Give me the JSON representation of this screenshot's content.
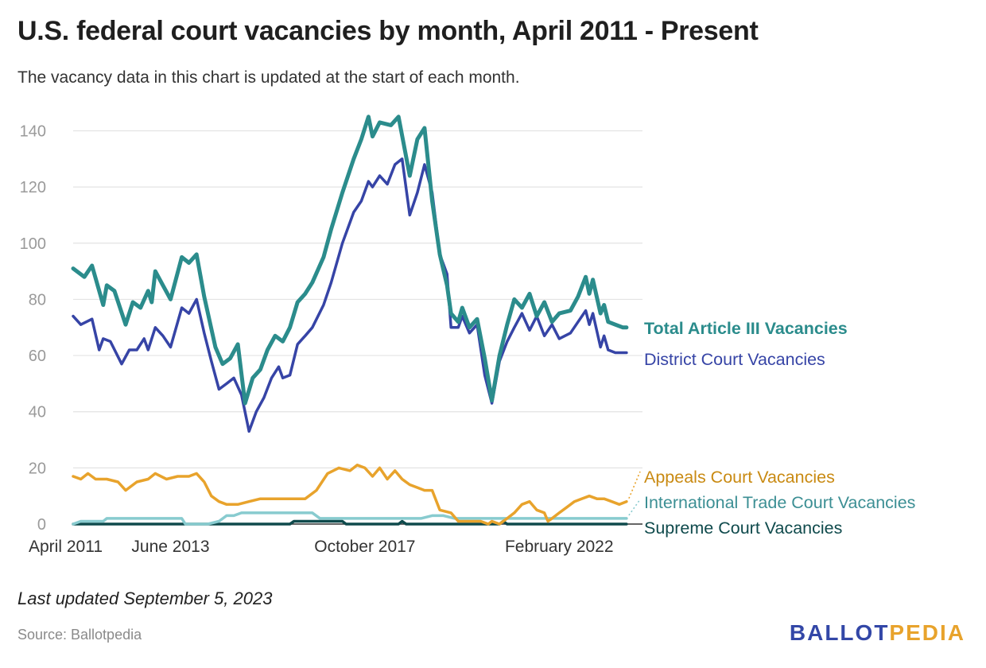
{
  "header": {
    "title": "U.S. federal court vacancies by month, April 2011 - Present",
    "subtitle": "The vacancy data in this chart is updated at the start of each month."
  },
  "footer": {
    "updated": "Last updated September 5, 2023",
    "source": "Source: Ballotpedia",
    "logo_ballot": "BALLOT",
    "logo_pedia": "PEDIA"
  },
  "chart_data": {
    "type": "line",
    "title": "U.S. federal court vacancies by month, April 2011 - Present",
    "ylim": [
      0,
      145
    ],
    "yticks": [
      0,
      20,
      40,
      60,
      80,
      100,
      120,
      140
    ],
    "xlim": [
      2011.25,
      2023.67
    ],
    "xticks": [
      {
        "x": 2011.25,
        "label": "April 2011"
      },
      {
        "x": 2013.42,
        "label": "June 2013"
      },
      {
        "x": 2017.75,
        "label": "October 2017"
      },
      {
        "x": 2022.08,
        "label": "February 2022"
      }
    ],
    "grid": true,
    "legend": "right-inline",
    "series": [
      {
        "name": "Total Article III Vacancies",
        "color": "#2b8c8c",
        "width": 5,
        "points": [
          [
            2011.25,
            91
          ],
          [
            2011.5,
            88
          ],
          [
            2011.67,
            92
          ],
          [
            2011.92,
            78
          ],
          [
            2012.0,
            85
          ],
          [
            2012.17,
            83
          ],
          [
            2012.42,
            71
          ],
          [
            2012.58,
            79
          ],
          [
            2012.75,
            77
          ],
          [
            2012.92,
            83
          ],
          [
            2013.0,
            79
          ],
          [
            2013.08,
            90
          ],
          [
            2013.25,
            85
          ],
          [
            2013.42,
            80
          ],
          [
            2013.67,
            95
          ],
          [
            2013.83,
            93
          ],
          [
            2014.0,
            96
          ],
          [
            2014.17,
            81
          ],
          [
            2014.42,
            63
          ],
          [
            2014.58,
            57
          ],
          [
            2014.75,
            59
          ],
          [
            2014.92,
            64
          ],
          [
            2015.08,
            43
          ],
          [
            2015.25,
            52
          ],
          [
            2015.42,
            55
          ],
          [
            2015.58,
            62
          ],
          [
            2015.75,
            67
          ],
          [
            2015.92,
            65
          ],
          [
            2016.08,
            70
          ],
          [
            2016.25,
            79
          ],
          [
            2016.42,
            82
          ],
          [
            2016.58,
            86
          ],
          [
            2016.83,
            95
          ],
          [
            2017.0,
            105
          ],
          [
            2017.25,
            118
          ],
          [
            2017.5,
            130
          ],
          [
            2017.67,
            137
          ],
          [
            2017.83,
            145
          ],
          [
            2017.92,
            138
          ],
          [
            2018.08,
            143
          ],
          [
            2018.33,
            142
          ],
          [
            2018.5,
            145
          ],
          [
            2018.75,
            124
          ],
          [
            2018.92,
            137
          ],
          [
            2019.08,
            141
          ],
          [
            2019.25,
            115
          ],
          [
            2019.42,
            96
          ],
          [
            2019.58,
            85
          ],
          [
            2019.67,
            75
          ],
          [
            2019.83,
            72
          ],
          [
            2019.92,
            77
          ],
          [
            2020.08,
            70
          ],
          [
            2020.25,
            73
          ],
          [
            2020.42,
            59
          ],
          [
            2020.58,
            44
          ],
          [
            2020.75,
            60
          ],
          [
            2020.92,
            71
          ],
          [
            2021.08,
            80
          ],
          [
            2021.25,
            77
          ],
          [
            2021.42,
            82
          ],
          [
            2021.58,
            74
          ],
          [
            2021.75,
            79
          ],
          [
            2021.92,
            72
          ],
          [
            2022.08,
            75
          ],
          [
            2022.33,
            76
          ],
          [
            2022.5,
            81
          ],
          [
            2022.67,
            88
          ],
          [
            2022.75,
            82
          ],
          [
            2022.83,
            87
          ],
          [
            2023.0,
            75
          ],
          [
            2023.08,
            78
          ],
          [
            2023.17,
            72
          ],
          [
            2023.33,
            71
          ],
          [
            2023.5,
            70
          ],
          [
            2023.58,
            70
          ]
        ]
      },
      {
        "name": "District Court Vacancies",
        "color": "#3644a6",
        "width": 3.5,
        "points": [
          [
            2011.25,
            74
          ],
          [
            2011.42,
            71
          ],
          [
            2011.67,
            73
          ],
          [
            2011.83,
            62
          ],
          [
            2011.92,
            66
          ],
          [
            2012.08,
            65
          ],
          [
            2012.33,
            57
          ],
          [
            2012.5,
            62
          ],
          [
            2012.67,
            62
          ],
          [
            2012.83,
            66
          ],
          [
            2012.92,
            62
          ],
          [
            2013.08,
            70
          ],
          [
            2013.25,
            67
          ],
          [
            2013.42,
            63
          ],
          [
            2013.67,
            77
          ],
          [
            2013.83,
            75
          ],
          [
            2014.0,
            80
          ],
          [
            2014.17,
            68
          ],
          [
            2014.33,
            58
          ],
          [
            2014.5,
            48
          ],
          [
            2014.67,
            50
          ],
          [
            2014.83,
            52
          ],
          [
            2015.0,
            46
          ],
          [
            2015.17,
            33
          ],
          [
            2015.33,
            40
          ],
          [
            2015.5,
            45
          ],
          [
            2015.67,
            52
          ],
          [
            2015.83,
            56
          ],
          [
            2015.92,
            52
          ],
          [
            2016.08,
            53
          ],
          [
            2016.25,
            64
          ],
          [
            2016.42,
            67
          ],
          [
            2016.58,
            70
          ],
          [
            2016.83,
            78
          ],
          [
            2017.0,
            86
          ],
          [
            2017.25,
            100
          ],
          [
            2017.5,
            111
          ],
          [
            2017.67,
            115
          ],
          [
            2017.83,
            122
          ],
          [
            2017.92,
            120
          ],
          [
            2018.08,
            124
          ],
          [
            2018.25,
            121
          ],
          [
            2018.42,
            128
          ],
          [
            2018.58,
            130
          ],
          [
            2018.75,
            110
          ],
          [
            2018.92,
            118
          ],
          [
            2019.08,
            128
          ],
          [
            2019.25,
            118
          ],
          [
            2019.42,
            96
          ],
          [
            2019.58,
            89
          ],
          [
            2019.67,
            70
          ],
          [
            2019.83,
            70
          ],
          [
            2019.92,
            74
          ],
          [
            2020.08,
            68
          ],
          [
            2020.25,
            71
          ],
          [
            2020.42,
            53
          ],
          [
            2020.58,
            43
          ],
          [
            2020.75,
            58
          ],
          [
            2020.92,
            65
          ],
          [
            2021.08,
            70
          ],
          [
            2021.25,
            75
          ],
          [
            2021.42,
            69
          ],
          [
            2021.58,
            74
          ],
          [
            2021.75,
            67
          ],
          [
            2021.92,
            71
          ],
          [
            2022.08,
            66
          ],
          [
            2022.33,
            68
          ],
          [
            2022.5,
            72
          ],
          [
            2022.67,
            76
          ],
          [
            2022.75,
            71
          ],
          [
            2022.83,
            75
          ],
          [
            2023.0,
            63
          ],
          [
            2023.08,
            67
          ],
          [
            2023.17,
            62
          ],
          [
            2023.33,
            61
          ],
          [
            2023.5,
            61
          ],
          [
            2023.58,
            61
          ]
        ]
      },
      {
        "name": "Appeals Court Vacancies",
        "color": "#e8a32c",
        "width": 3.5,
        "points": [
          [
            2011.25,
            17
          ],
          [
            2011.42,
            16
          ],
          [
            2011.58,
            18
          ],
          [
            2011.75,
            16
          ],
          [
            2012.0,
            16
          ],
          [
            2012.25,
            15
          ],
          [
            2012.42,
            12
          ],
          [
            2012.67,
            15
          ],
          [
            2012.92,
            16
          ],
          [
            2013.08,
            18
          ],
          [
            2013.33,
            16
          ],
          [
            2013.58,
            17
          ],
          [
            2013.83,
            17
          ],
          [
            2014.0,
            18
          ],
          [
            2014.17,
            15
          ],
          [
            2014.33,
            10
          ],
          [
            2014.5,
            8
          ],
          [
            2014.67,
            7
          ],
          [
            2014.92,
            7
          ],
          [
            2015.17,
            8
          ],
          [
            2015.42,
            9
          ],
          [
            2015.67,
            9
          ],
          [
            2015.92,
            9
          ],
          [
            2016.17,
            9
          ],
          [
            2016.42,
            9
          ],
          [
            2016.67,
            12
          ],
          [
            2016.92,
            18
          ],
          [
            2017.17,
            20
          ],
          [
            2017.42,
            19
          ],
          [
            2017.58,
            21
          ],
          [
            2017.75,
            20
          ],
          [
            2017.92,
            17
          ],
          [
            2018.08,
            20
          ],
          [
            2018.25,
            16
          ],
          [
            2018.42,
            19
          ],
          [
            2018.58,
            16
          ],
          [
            2018.75,
            14
          ],
          [
            2018.92,
            13
          ],
          [
            2019.08,
            12
          ],
          [
            2019.25,
            12
          ],
          [
            2019.42,
            5
          ],
          [
            2019.67,
            4
          ],
          [
            2019.83,
            1
          ],
          [
            2020.08,
            1
          ],
          [
            2020.33,
            1
          ],
          [
            2020.5,
            0
          ],
          [
            2020.58,
            1
          ],
          [
            2020.75,
            0
          ],
          [
            2020.92,
            2
          ],
          [
            2021.08,
            4
          ],
          [
            2021.25,
            7
          ],
          [
            2021.42,
            8
          ],
          [
            2021.58,
            5
          ],
          [
            2021.75,
            4
          ],
          [
            2021.83,
            1
          ],
          [
            2021.92,
            2
          ],
          [
            2022.08,
            4
          ],
          [
            2022.25,
            6
          ],
          [
            2022.42,
            8
          ],
          [
            2022.58,
            9
          ],
          [
            2022.75,
            10
          ],
          [
            2022.92,
            9
          ],
          [
            2023.08,
            9
          ],
          [
            2023.25,
            8
          ],
          [
            2023.42,
            7
          ],
          [
            2023.58,
            8
          ]
        ]
      },
      {
        "name": "International Trade Court Vacancies",
        "color": "#88cbcf",
        "width": 3.5,
        "points": [
          [
            2011.25,
            0
          ],
          [
            2011.42,
            1
          ],
          [
            2011.92,
            1
          ],
          [
            2012.0,
            2
          ],
          [
            2013.67,
            2
          ],
          [
            2013.75,
            0
          ],
          [
            2014.25,
            0
          ],
          [
            2014.5,
            1
          ],
          [
            2014.67,
            3
          ],
          [
            2014.83,
            3
          ],
          [
            2015.0,
            4
          ],
          [
            2016.58,
            4
          ],
          [
            2016.75,
            2
          ],
          [
            2019.0,
            2
          ],
          [
            2019.25,
            3
          ],
          [
            2019.5,
            3
          ],
          [
            2019.75,
            2
          ],
          [
            2023.58,
            2
          ]
        ]
      },
      {
        "name": "Supreme Court Vacancies",
        "color": "#0f4a4c",
        "width": 3.5,
        "points": [
          [
            2011.25,
            0
          ],
          [
            2016.08,
            0
          ],
          [
            2016.17,
            1
          ],
          [
            2017.25,
            1
          ],
          [
            2017.33,
            0
          ],
          [
            2018.5,
            0
          ],
          [
            2018.58,
            1
          ],
          [
            2018.67,
            0
          ],
          [
            2020.75,
            0
          ],
          [
            2020.83,
            1
          ],
          [
            2020.92,
            0
          ],
          [
            2023.58,
            0
          ]
        ]
      }
    ]
  }
}
